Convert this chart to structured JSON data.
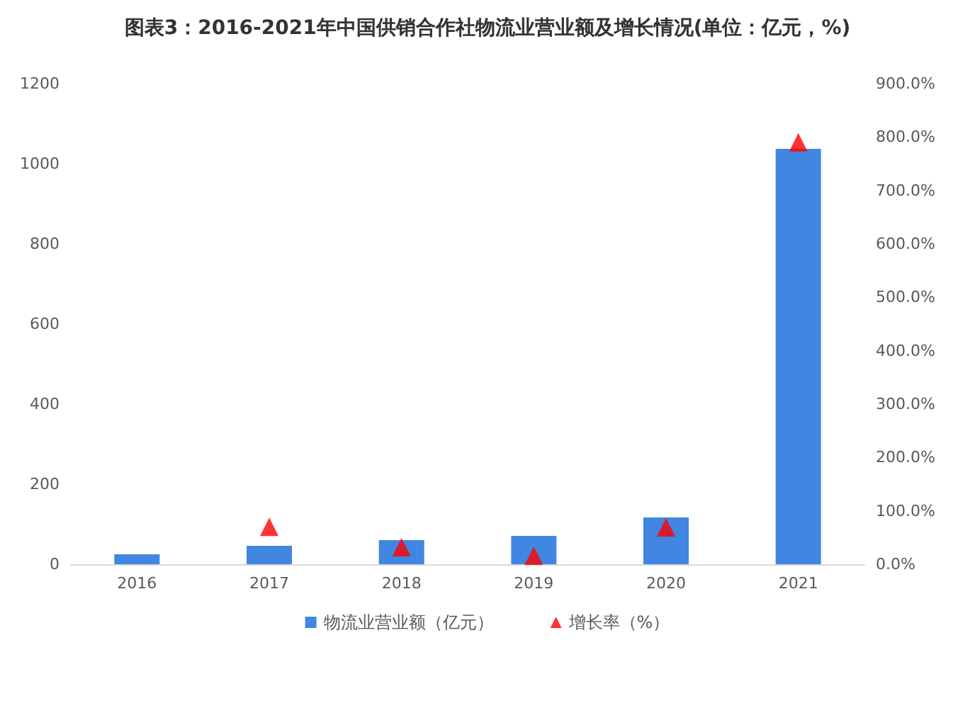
{
  "chart_data": {
    "type": "bar",
    "title": "图表3：2016-2021年中国供销合作社物流业营业额及增长情况(单位：亿元，%)",
    "categories": [
      "2016",
      "2017",
      "2018",
      "2019",
      "2020",
      "2021"
    ],
    "series": [
      {
        "name": "物流业营业额（亿元）",
        "color": "#4186e0",
        "values": [
          25,
          46,
          60,
          71,
          117,
          1037
        ]
      },
      {
        "name": "增长率（%）",
        "type": "scatter",
        "axis": "y2",
        "marker": "triangle",
        "color": "#ff0000",
        "values": [
          null,
          70,
          32,
          16,
          69,
          790
        ]
      }
    ],
    "ylim": [
      0,
      1200
    ],
    "yticks": [
      0,
      200,
      400,
      600,
      800,
      1000,
      1200
    ],
    "y2lim": [
      0,
      900
    ],
    "y2ticks": [
      {
        "value": 0,
        "label": "0.0%"
      },
      {
        "value": 100,
        "label": "100.0%"
      },
      {
        "value": 200,
        "label": "200.0%"
      },
      {
        "value": 300,
        "label": "300.0%"
      },
      {
        "value": 400,
        "label": "400.0%"
      },
      {
        "value": 500,
        "label": "500.0%"
      },
      {
        "value": 600,
        "label": "600.0%"
      },
      {
        "value": 700,
        "label": "700.0%"
      },
      {
        "value": 800,
        "label": "800.0%"
      },
      {
        "value": 900,
        "label": "900.0%"
      }
    ],
    "grid": false,
    "legend": "bottom"
  }
}
